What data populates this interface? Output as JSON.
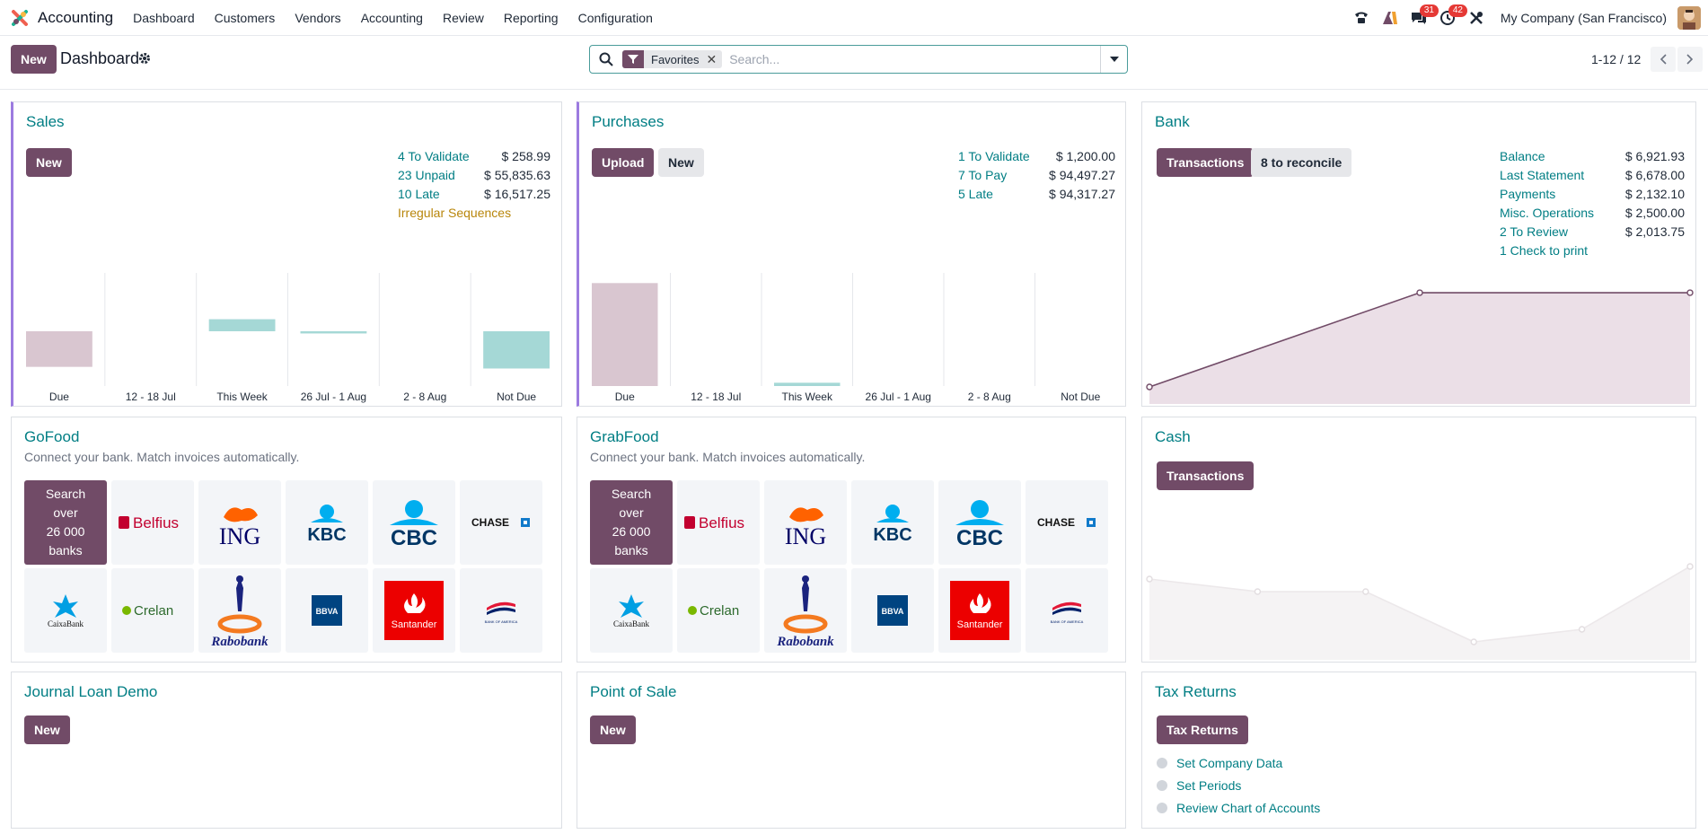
{
  "nav": {
    "app_title": "Accounting",
    "menu": [
      "Dashboard",
      "Customers",
      "Vendors",
      "Accounting",
      "Review",
      "Reporting",
      "Configuration"
    ],
    "messages_count": "31",
    "activities_count": "42",
    "company": "My Company (San Francisco)"
  },
  "control": {
    "new_label": "New",
    "title": "Dashboard",
    "facet_label": "Favorites",
    "search_placeholder": "Search...",
    "pager": "1-12 / 12"
  },
  "sales": {
    "title": "Sales",
    "new_label": "New",
    "stats": [
      {
        "label": "4 To Validate",
        "value": "$ 258.99"
      },
      {
        "label": "23 Unpaid",
        "value": "$ 55,835.63"
      },
      {
        "label": "10 Late",
        "value": "$ 16,517.25"
      }
    ],
    "irregular": "Irregular Sequences"
  },
  "purchases": {
    "title": "Purchases",
    "upload_label": "Upload",
    "new_label": "New",
    "stats": [
      {
        "label": "1 To Validate",
        "value": "$ 1,200.00"
      },
      {
        "label": "7 To Pay",
        "value": "$ 94,497.27"
      },
      {
        "label": "5 Late",
        "value": "$ 94,317.27"
      }
    ]
  },
  "bank": {
    "title": "Bank",
    "transactions_label": "Transactions",
    "reconcile_label": "8 to reconcile",
    "stats": [
      {
        "label": "Balance",
        "value": "$ 6,921.93"
      },
      {
        "label": "Last Statement",
        "value": "$ 6,678.00"
      },
      {
        "label": "Payments",
        "value": "$ 2,132.10"
      },
      {
        "label": "Misc. Operations",
        "value": "$ 2,500.00"
      },
      {
        "label": "2 To Review",
        "value": "$ 2,013.75"
      }
    ],
    "check_print": "1 Check to print"
  },
  "gofood": {
    "title": "GoFood",
    "subtitle": "Connect your bank. Match invoices automatically.",
    "search_banks": [
      "Search",
      "over",
      "26 000",
      "banks"
    ]
  },
  "grabfood": {
    "title": "GrabFood",
    "subtitle": "Connect your bank. Match invoices automatically.",
    "search_banks": [
      "Search",
      "over",
      "26 000",
      "banks"
    ]
  },
  "bank_logos": {
    "belfius": "Belfius",
    "ing": "ING",
    "kbc": "KBC",
    "cbc": "CBC",
    "chase": "CHASE",
    "caixabank": "CaixaBank",
    "crelan": "Crelan",
    "rabobank": "Rabobank",
    "bbva": "BBVA",
    "santander": "Santander",
    "bankofamerica": "BANK OF AMERICA"
  },
  "cash": {
    "title": "Cash",
    "transactions_label": "Transactions"
  },
  "journal_loan": {
    "title": "Journal Loan Demo",
    "new_label": "New"
  },
  "pos": {
    "title": "Point of Sale",
    "new_label": "New"
  },
  "tax": {
    "title": "Tax Returns",
    "button_label": "Tax Returns",
    "todos": [
      "Set Company Data",
      "Set Periods",
      "Review Chart of Accounts"
    ]
  },
  "chart_data": [
    {
      "type": "bar",
      "name": "sales-graph",
      "categories": [
        "Due",
        "12 - 18 Jul",
        "This Week",
        "26 Jul - 1 Aug",
        "2 - 8 Aug",
        "Not Due"
      ],
      "values": [
        -65,
        0,
        22,
        -4,
        0,
        -68
      ],
      "ylim": [
        -100,
        100
      ],
      "colors": [
        "#d9c6d0",
        "#d9c6d0",
        "#a5d8d6",
        "#a5d8d6",
        "#a5d8d6",
        "#a5d8d6"
      ]
    },
    {
      "type": "bar",
      "name": "purchases-graph",
      "categories": [
        "Due",
        "12 - 18 Jul",
        "This Week",
        "26 Jul - 1 Aug",
        "2 - 8 Aug",
        "Not Due"
      ],
      "values": [
        94,
        0,
        3,
        0,
        0,
        0
      ],
      "ylim": [
        0,
        100
      ],
      "colors": [
        "#d9c6d0",
        "#d9c6d0",
        "#a5d8d6",
        "#a5d8d6",
        "#a5d8d6",
        "#a5d8d6"
      ]
    },
    {
      "type": "area",
      "name": "bank-graph",
      "x": [
        0,
        1,
        2
      ],
      "values": [
        4500,
        6921.93,
        6921.93
      ],
      "ylim": [
        4200,
        7200
      ],
      "color": "#714b67"
    },
    {
      "type": "area",
      "name": "cash-graph",
      "x": [
        0,
        1,
        2,
        3,
        4,
        5
      ],
      "values": [
        60,
        50,
        50,
        10,
        20,
        70
      ],
      "ylim": [
        0,
        100
      ],
      "color": "#cfc8ce"
    }
  ]
}
